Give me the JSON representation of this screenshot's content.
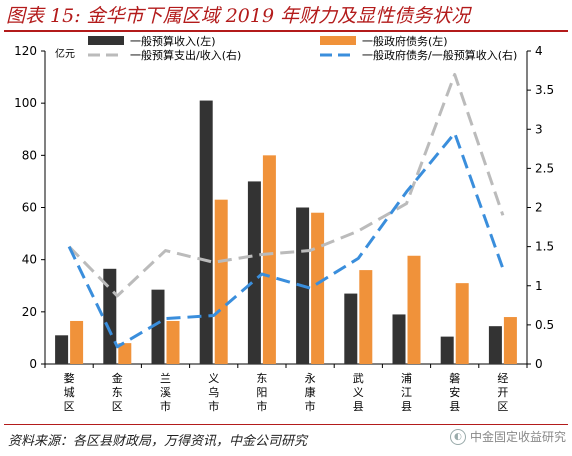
{
  "header": {
    "title": "图表 15: 金华市下属区域 2019 年财力及显性债务状况"
  },
  "footer": {
    "source": "资料来源：各区县财政局，万得资讯，中金公司研究",
    "watermark": "中金固定收益研究"
  },
  "chart_data": {
    "type": "bar",
    "y_unit_left": "亿元",
    "categories": [
      "婺城区",
      "金东区",
      "兰溪市",
      "义乌市",
      "东阳市",
      "永康市",
      "武义县",
      "浦江县",
      "磐安县",
      "经开区"
    ],
    "ylim": [
      0,
      120
    ],
    "y2lim": [
      0,
      4
    ],
    "yticks": [
      0,
      20,
      40,
      60,
      80,
      100,
      120
    ],
    "y2ticks": [
      "0",
      "0.5",
      "1",
      "1.5",
      "2",
      "2.5",
      "3",
      "3.5",
      "4"
    ],
    "grid": false,
    "legend_position": "top",
    "series": [
      {
        "name": "一般预算收入(左)",
        "type": "bar",
        "axis": "left",
        "color": "#333333",
        "values": [
          11,
          36.5,
          28.5,
          101,
          70,
          60,
          27,
          19,
          10.5,
          14.5
        ]
      },
      {
        "name": "一般政府债务(左)",
        "type": "bar",
        "axis": "left",
        "color": "#F0923A",
        "values": [
          16.5,
          8,
          16.5,
          63,
          80,
          58,
          36,
          41.5,
          31,
          18
        ]
      },
      {
        "name": "一般预算支出/收入(右)",
        "type": "line",
        "axis": "right",
        "color": "#BBBBBB",
        "dash": "long",
        "values": [
          1.5,
          0.87,
          1.45,
          1.3,
          1.4,
          1.45,
          1.7,
          2.05,
          3.7,
          1.9
        ]
      },
      {
        "name": "一般政府债务/一般预算收入(右)",
        "type": "line",
        "axis": "right",
        "color": "#3A8EDC",
        "dash": "long",
        "values": [
          1.5,
          0.22,
          0.58,
          0.62,
          1.15,
          0.97,
          1.35,
          2.2,
          2.95,
          1.22
        ]
      }
    ]
  }
}
